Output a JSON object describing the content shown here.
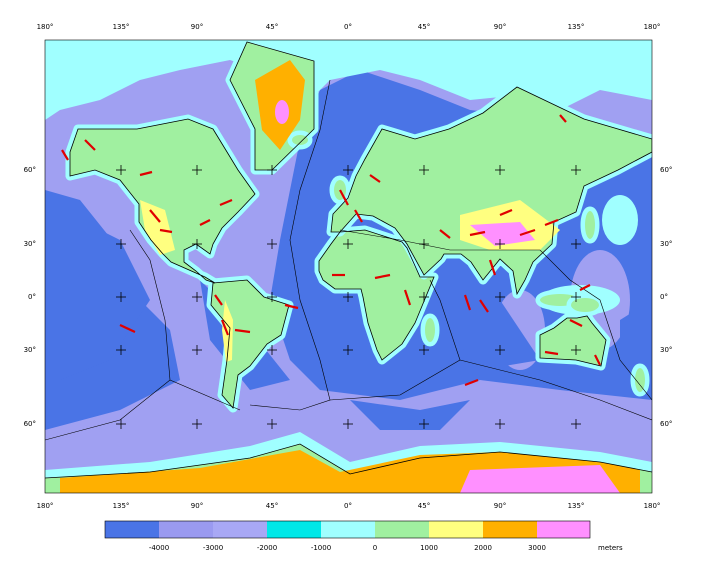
{
  "map": {
    "top_longitude_labels": [
      "180°",
      "135°",
      "90°",
      "45°",
      "0°",
      "45°",
      "90°",
      "135°",
      "180°"
    ],
    "bottom_longitude_labels": [
      "180°",
      "135°",
      "90°",
      "45°",
      "0°",
      "45°",
      "90°",
      "135°",
      "180°"
    ],
    "left_latitude_labels": [
      "60°",
      "30°",
      "0°",
      "30°",
      "60°"
    ],
    "right_latitude_labels": [
      "60°",
      "30°",
      "0°",
      "30°",
      "60°"
    ]
  },
  "colorbar": {
    "labels": [
      "-4000",
      "-3000",
      "-2000",
      "-1000",
      "0",
      "1000",
      "2000",
      "3000"
    ],
    "unit": "meters"
  }
}
